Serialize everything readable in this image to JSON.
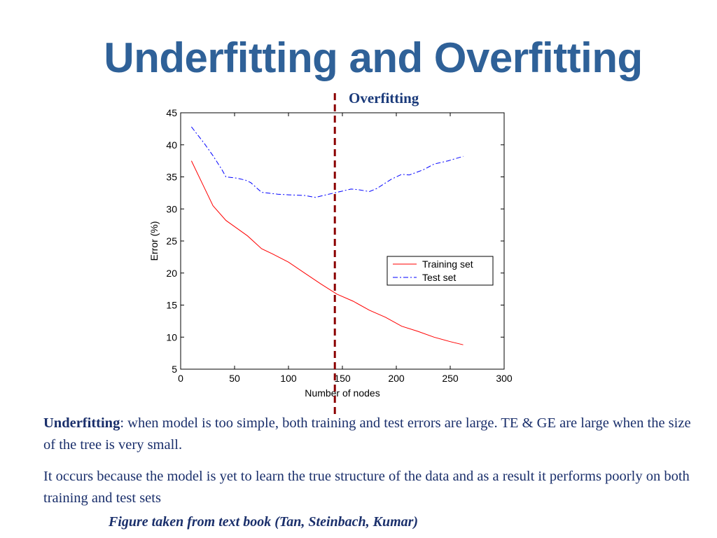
{
  "slide": {
    "title": "Underfitting and Overfitting",
    "annotation": "Overfitting",
    "para1_term": "Underfitting",
    "para1_text": ": when model is too simple, both training and test errors are large. TE & GE are large when the size of the tree is very small.",
    "para2_text": "It occurs because the model is yet to learn the true structure of the data and as a result it performs poorly on both training and test sets",
    "caption": "Figure taken from text book (Tan, Steinbach, Kumar)"
  },
  "colors": {
    "title": "#2f6198",
    "text": "#1a2f6b",
    "training": "#ff0000",
    "test": "#0000ff",
    "divider": "#8b0000"
  },
  "chart_data": {
    "type": "line",
    "title": "",
    "xlabel": "Number of nodes",
    "ylabel": "Error (%)",
    "xlim": [
      0,
      300
    ],
    "ylim": [
      5,
      45
    ],
    "xticks": [
      0,
      50,
      100,
      150,
      200,
      250,
      300
    ],
    "yticks": [
      5,
      10,
      15,
      20,
      25,
      30,
      35,
      40,
      45
    ],
    "grid": false,
    "legend_position": "center-right",
    "marker_line_x": 143,
    "series": [
      {
        "name": "Training set",
        "style": "solid",
        "color": "#ff0000",
        "x": [
          10,
          20,
          30,
          42,
          52,
          62,
          75,
          85,
          100,
          115,
          130,
          145,
          160,
          175,
          190,
          205,
          220,
          235,
          250,
          262
        ],
        "y": [
          37.5,
          34,
          30.5,
          28.2,
          27,
          25.8,
          23.8,
          23,
          21.7,
          20,
          18.3,
          16.7,
          15.6,
          14.2,
          13.1,
          11.7,
          10.9,
          10,
          9.3,
          8.8
        ]
      },
      {
        "name": "Test set",
        "style": "dashdot",
        "color": "#0000ff",
        "x": [
          10,
          22,
          30,
          38,
          42,
          52,
          60,
          65,
          75,
          90,
          100,
          115,
          125,
          130,
          140,
          148,
          158,
          165,
          175,
          182,
          195,
          205,
          212,
          225,
          235,
          248,
          262
        ],
        "y": [
          42.8,
          40.2,
          38.3,
          36.2,
          35,
          34.8,
          34.5,
          34.1,
          32.6,
          32.3,
          32.2,
          32.1,
          31.8,
          32,
          32.4,
          32.7,
          33.1,
          33,
          32.7,
          33.2,
          34.6,
          35.4,
          35.3,
          36.1,
          37,
          37.5,
          38.2
        ]
      }
    ]
  }
}
